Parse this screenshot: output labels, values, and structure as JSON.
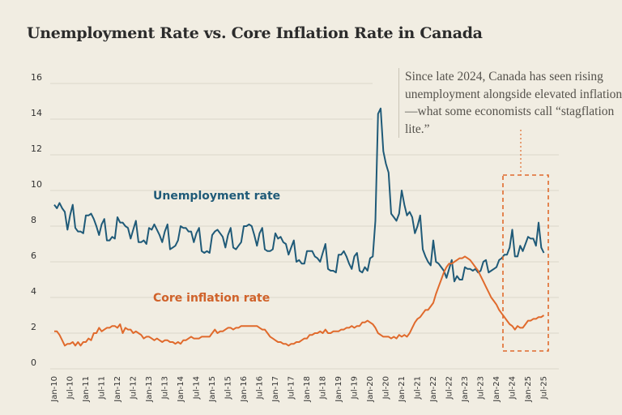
{
  "title": "Unemployment Rate vs. Core Inflation Rate in Canada",
  "annotation": "Since late 2024, Canada has seen rising unemployment alongside elevated inflation—what some economists call “stagflation lite.”",
  "chart_data": {
    "type": "line",
    "title": "Unemployment Rate vs. Core Inflation Rate in Canada",
    "xlabel": "",
    "ylabel": "",
    "ylim": [
      0,
      16
    ],
    "yticks": [
      "0",
      "2",
      "4",
      "6",
      "8",
      "10",
      "12",
      "14",
      "16"
    ],
    "xticks": [
      "Jan-10",
      "Jul-10",
      "Jan-11",
      "Jul-11",
      "Jan-12",
      "Jul-12",
      "Jan-13",
      "Jul-13",
      "Jan-14",
      "Jul-14",
      "Jan-15",
      "Jul-15",
      "Jan-16",
      "Jul-16",
      "Jan-17",
      "Jul-17",
      "Jan-18",
      "Jul-18",
      "Jan-19",
      "Jul-19",
      "Jan-20",
      "Jul-20",
      "Jan-21",
      "Jul-21",
      "Jan-22",
      "Jul-22",
      "Jan-23",
      "Jul-23",
      "Jan-24",
      "Jul-24",
      "Jan-25",
      "Jul-25"
    ],
    "x_start": "Jan-10",
    "x_frequency": "monthly",
    "grid": true,
    "highlight_range": [
      "May-24",
      "Jul-25"
    ],
    "series": [
      {
        "name": "Unemployment rate",
        "color": "#1f5a78",
        "values": [
          9.2,
          9.0,
          9.3,
          9.0,
          8.8,
          7.8,
          8.6,
          9.2,
          7.9,
          7.7,
          7.7,
          7.6,
          8.6,
          8.6,
          8.7,
          8.4,
          8.0,
          7.5,
          8.1,
          8.4,
          7.2,
          7.2,
          7.4,
          7.3,
          8.5,
          8.2,
          8.2,
          8.0,
          7.9,
          7.3,
          7.8,
          8.3,
          7.1,
          7.1,
          7.2,
          7.0,
          7.9,
          7.8,
          8.1,
          7.8,
          7.5,
          7.1,
          7.7,
          8.1,
          6.7,
          6.8,
          6.9,
          7.2,
          8.0,
          7.9,
          7.9,
          7.7,
          7.7,
          7.1,
          7.6,
          7.9,
          6.6,
          6.5,
          6.6,
          6.5,
          7.5,
          7.7,
          7.8,
          7.6,
          7.4,
          6.8,
          7.5,
          7.9,
          6.8,
          6.7,
          6.9,
          7.1,
          8.0,
          8.0,
          8.1,
          8.0,
          7.5,
          6.9,
          7.6,
          7.9,
          6.7,
          6.6,
          6.6,
          6.7,
          7.6,
          7.3,
          7.4,
          7.1,
          7.0,
          6.4,
          6.8,
          7.2,
          6.0,
          6.1,
          5.9,
          5.9,
          6.6,
          6.6,
          6.6,
          6.3,
          6.2,
          6.0,
          6.5,
          7.0,
          5.6,
          5.5,
          5.5,
          5.4,
          6.4,
          6.4,
          6.6,
          6.3,
          5.9,
          5.6,
          6.3,
          6.5,
          5.5,
          5.4,
          5.7,
          5.5,
          6.2,
          6.3,
          8.3,
          14.3,
          14.6,
          12.2,
          11.5,
          11.0,
          8.7,
          8.5,
          8.3,
          8.7,
          10.0,
          9.2,
          8.6,
          8.8,
          8.5,
          7.6,
          8.0,
          8.6,
          6.7,
          6.3,
          6.0,
          5.8,
          7.2,
          6.0,
          5.9,
          5.7,
          5.5,
          5.1,
          5.6,
          6.1,
          4.9,
          5.2,
          5.0,
          5.0,
          5.7,
          5.6,
          5.6,
          5.5,
          5.6,
          5.4,
          5.5,
          6.0,
          6.1,
          5.4,
          5.5,
          5.6,
          5.7,
          6.1,
          6.2,
          6.4,
          6.4,
          6.8,
          7.8,
          6.3,
          6.3,
          6.9,
          6.6,
          7.0,
          7.4,
          7.3,
          7.3,
          6.9,
          8.2,
          6.8,
          6.5
        ]
      },
      {
        "name": "Core inflation rate",
        "color": "#e06a2c",
        "values": [
          2.1,
          2.1,
          1.9,
          1.6,
          1.3,
          1.4,
          1.4,
          1.5,
          1.3,
          1.5,
          1.3,
          1.5,
          1.5,
          1.7,
          1.6,
          2.0,
          2.0,
          2.3,
          2.1,
          2.2,
          2.3,
          2.3,
          2.4,
          2.4,
          2.3,
          2.5,
          2.0,
          2.3,
          2.2,
          2.2,
          2.0,
          2.1,
          2.0,
          1.9,
          1.7,
          1.8,
          1.8,
          1.7,
          1.6,
          1.7,
          1.6,
          1.5,
          1.6,
          1.6,
          1.5,
          1.5,
          1.4,
          1.5,
          1.4,
          1.6,
          1.6,
          1.7,
          1.8,
          1.7,
          1.7,
          1.7,
          1.8,
          1.8,
          1.8,
          1.8,
          2.0,
          2.2,
          2.0,
          2.1,
          2.1,
          2.2,
          2.3,
          2.3,
          2.2,
          2.3,
          2.3,
          2.4,
          2.4,
          2.4,
          2.4,
          2.4,
          2.4,
          2.4,
          2.3,
          2.2,
          2.2,
          2.0,
          1.8,
          1.7,
          1.6,
          1.5,
          1.5,
          1.4,
          1.4,
          1.3,
          1.4,
          1.4,
          1.5,
          1.5,
          1.6,
          1.7,
          1.7,
          1.9,
          1.9,
          2.0,
          2.0,
          2.1,
          2.0,
          2.2,
          2.0,
          2.0,
          2.1,
          2.1,
          2.1,
          2.2,
          2.2,
          2.3,
          2.3,
          2.4,
          2.3,
          2.4,
          2.4,
          2.6,
          2.6,
          2.7,
          2.6,
          2.5,
          2.3,
          2.0,
          1.9,
          1.8,
          1.8,
          1.8,
          1.7,
          1.8,
          1.7,
          1.9,
          1.8,
          1.9,
          1.8,
          2.0,
          2.3,
          2.6,
          2.8,
          2.9,
          3.1,
          3.3,
          3.3,
          3.5,
          3.7,
          4.2,
          4.6,
          5.0,
          5.4,
          5.7,
          5.9,
          5.9,
          6.0,
          6.1,
          6.2,
          6.2,
          6.3,
          6.2,
          6.1,
          5.9,
          5.7,
          5.5,
          5.2,
          4.9,
          4.6,
          4.3,
          4.0,
          3.8,
          3.6,
          3.3,
          3.1,
          2.9,
          2.7,
          2.5,
          2.4,
          2.2,
          2.4,
          2.3,
          2.3,
          2.5,
          2.7,
          2.7,
          2.8,
          2.8,
          2.9,
          2.9,
          3.0
        ]
      }
    ],
    "series_labels": [
      "Unemployment rate",
      "Core inflation rate"
    ]
  }
}
